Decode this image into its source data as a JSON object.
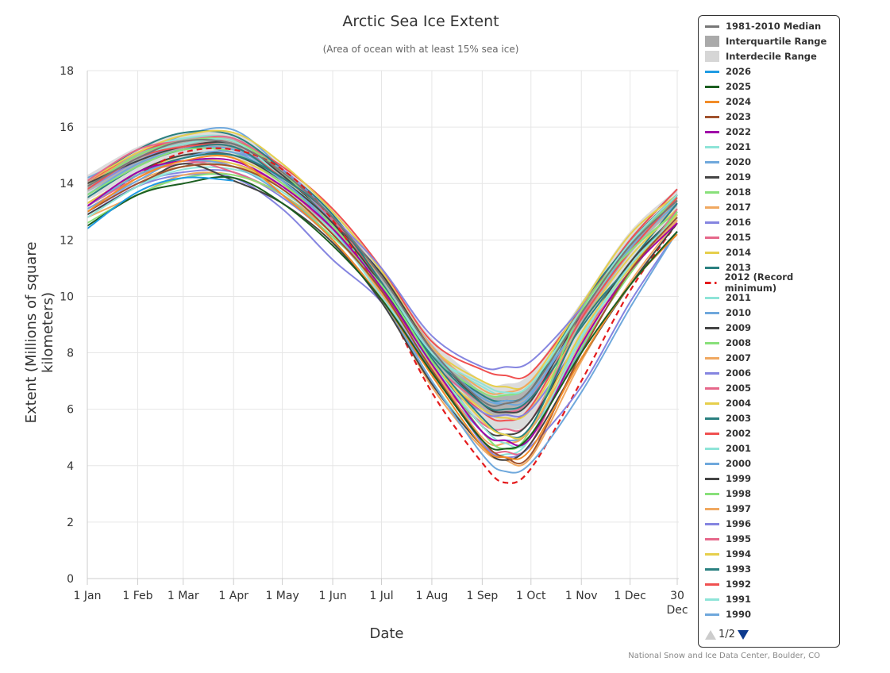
{
  "chart_data": {
    "type": "line",
    "title": "Arctic Sea Ice Extent",
    "subtitle": "(Area of ocean with at least 15% sea ice)",
    "xlabel": "Date",
    "ylabel": "Extent (Millions of square kilometers)",
    "ylim": [
      0,
      18
    ],
    "yticks": [
      0,
      2,
      4,
      6,
      8,
      10,
      12,
      14,
      16,
      18
    ],
    "xlim_days": [
      0,
      363
    ],
    "xticks": [
      {
        "day": 0,
        "label": "1 Jan"
      },
      {
        "day": 31,
        "label": "1 Feb"
      },
      {
        "day": 59,
        "label": "1 Mar"
      },
      {
        "day": 90,
        "label": "1 Apr"
      },
      {
        "day": 120,
        "label": "1 May"
      },
      {
        "day": 151,
        "label": "1 Jun"
      },
      {
        "day": 181,
        "label": "1 Jul"
      },
      {
        "day": 212,
        "label": "1 Aug"
      },
      {
        "day": 243,
        "label": "1 Sep"
      },
      {
        "day": 273,
        "label": "1 Oct"
      },
      {
        "day": 304,
        "label": "1 Nov"
      },
      {
        "day": 334,
        "label": "1 Dec"
      },
      {
        "day": 363,
        "label": "30",
        "label2": "Dec"
      }
    ],
    "grid": true,
    "legend_position": "right",
    "x_days": [
      0,
      31,
      59,
      90,
      120,
      151,
      181,
      212,
      243,
      257,
      273,
      304,
      334,
      363
    ],
    "median": {
      "name": "1981-2010 Median",
      "color": "#777777",
      "values": [
        13.9,
        14.9,
        15.5,
        15.4,
        14.4,
        12.8,
        10.7,
        8.1,
        6.3,
        6.2,
        6.7,
        9.4,
        11.8,
        13.4
      ]
    },
    "interquartile": {
      "name": "Interquartile Range",
      "color": "#aaaaaa",
      "lower": [
        13.7,
        14.6,
        15.2,
        15.2,
        14.1,
        12.5,
        10.4,
        7.8,
        6.0,
        5.8,
        6.3,
        9.0,
        11.5,
        13.2
      ],
      "upper": [
        14.1,
        15.1,
        15.6,
        15.6,
        14.5,
        12.9,
        10.8,
        8.3,
        6.6,
        6.5,
        6.9,
        9.6,
        12.0,
        13.6
      ]
    },
    "interdecile": {
      "name": "Interdecile Range",
      "color": "#d6d6d6",
      "lower": [
        13.4,
        14.3,
        14.9,
        14.9,
        13.8,
        12.2,
        10.0,
        7.4,
        5.5,
        5.3,
        5.6,
        8.4,
        11.0,
        12.9
      ],
      "upper": [
        14.3,
        15.3,
        15.8,
        15.8,
        14.7,
        13.1,
        11.0,
        8.5,
        7.0,
        6.9,
        7.3,
        9.8,
        12.3,
        13.8
      ]
    },
    "series": [
      {
        "name": "2026",
        "color": "#1f9be3",
        "values": [
          12.4,
          13.7,
          14.2,
          14.1
        ]
      },
      {
        "name": "2025",
        "color": "#1b5e20",
        "values": [
          12.5,
          13.6,
          14.0,
          14.2,
          13.3,
          11.8,
          9.9,
          7.3,
          4.9,
          4.6,
          5.1,
          8.0,
          10.4,
          12.3
        ]
      },
      {
        "name": "2024",
        "color": "#f28c28",
        "values": [
          13.0,
          14.2,
          14.8,
          14.9,
          13.6,
          12.0,
          9.9,
          7.2,
          4.7,
          4.3,
          4.6,
          7.8,
          10.4,
          12.2
        ]
      },
      {
        "name": "2023",
        "color": "#a0522d",
        "values": [
          13.0,
          14.0,
          14.6,
          14.6,
          13.8,
          12.2,
          10.2,
          7.4,
          4.9,
          4.3,
          4.4,
          8.0,
          10.9,
          12.8
        ]
      },
      {
        "name": "2022",
        "color": "#a000a8",
        "values": [
          13.2,
          14.4,
          14.8,
          14.8,
          13.9,
          12.4,
          10.3,
          7.6,
          5.2,
          4.9,
          5.0,
          8.3,
          10.9,
          12.6
        ]
      },
      {
        "name": "2021",
        "color": "#8ee4d8",
        "values": [
          12.8,
          13.9,
          14.6,
          14.6,
          13.7,
          12.3,
          10.0,
          7.6,
          5.4,
          4.8,
          5.0,
          8.5,
          11.1,
          12.8
        ]
      },
      {
        "name": "2020",
        "color": "#6fa8dc",
        "values": [
          13.2,
          14.3,
          14.8,
          14.6,
          13.6,
          12.0,
          9.9,
          7.0,
          4.4,
          3.8,
          4.1,
          6.6,
          9.6,
          12.3
        ]
      },
      {
        "name": "2019",
        "color": "#444444",
        "values": [
          12.9,
          13.9,
          14.7,
          14.1,
          13.3,
          11.9,
          9.8,
          6.9,
          4.7,
          4.2,
          4.8,
          7.8,
          10.4,
          12.6
        ]
      },
      {
        "name": "2018",
        "color": "#88e07a",
        "values": [
          12.6,
          13.6,
          14.2,
          14.3,
          13.6,
          12.1,
          10.4,
          7.7,
          5.2,
          4.6,
          5.1,
          8.2,
          10.8,
          13.0
        ]
      },
      {
        "name": "2017",
        "color": "#f0a860",
        "values": [
          12.8,
          13.6,
          14.3,
          14.3,
          13.6,
          12.2,
          10.1,
          7.5,
          5.0,
          4.8,
          5.3,
          8.4,
          10.9,
          12.7
        ]
      },
      {
        "name": "2016",
        "color": "#8585e0",
        "values": [
          12.9,
          13.9,
          14.3,
          14.2,
          13.1,
          11.3,
          9.8,
          7.4,
          4.8,
          4.3,
          4.7,
          6.8,
          9.8,
          12.3
        ]
      },
      {
        "name": "2015",
        "color": "#e6678a",
        "values": [
          13.2,
          14.2,
          14.8,
          14.4,
          13.6,
          12.2,
          10.1,
          7.6,
          4.8,
          4.5,
          4.8,
          8.5,
          10.8,
          13.1
        ]
      },
      {
        "name": "2014",
        "color": "#e6cf4c",
        "values": [
          13.3,
          14.3,
          14.8,
          14.7,
          13.8,
          12.2,
          10.2,
          7.7,
          5.6,
          5.1,
          5.3,
          8.7,
          11.0,
          12.9
        ]
      },
      {
        "name": "2013",
        "color": "#2a8080",
        "values": [
          13.2,
          14.3,
          14.9,
          15.0,
          14.2,
          12.8,
          10.5,
          7.8,
          5.7,
          5.1,
          5.4,
          9.0,
          11.1,
          13.0
        ]
      },
      {
        "name": "2012 (Record minimum)",
        "color": "#e41a1c",
        "dashed": true,
        "values": [
          13.2,
          14.3,
          15.1,
          15.2,
          14.5,
          12.7,
          10.0,
          6.6,
          4.1,
          3.4,
          3.9,
          7.0,
          10.2,
          12.6
        ]
      },
      {
        "name": "2011",
        "color": "#8ee4d8",
        "values": [
          12.9,
          13.9,
          14.5,
          14.5,
          13.8,
          12.0,
          9.8,
          7.0,
          4.7,
          4.4,
          5.0,
          8.6,
          10.9,
          12.8
        ]
      },
      {
        "name": "2010",
        "color": "#6fa8dc",
        "values": [
          13.1,
          14.1,
          14.9,
          15.1,
          14.1,
          12.4,
          10.0,
          7.3,
          5.2,
          4.9,
          5.3,
          8.1,
          10.9,
          12.9
        ]
      },
      {
        "name": "2009",
        "color": "#444444",
        "values": [
          13.2,
          14.4,
          15.0,
          15.0,
          14.1,
          12.6,
          10.4,
          7.7,
          5.4,
          5.1,
          5.6,
          8.6,
          11.2,
          12.9
        ]
      },
      {
        "name": "2008",
        "color": "#88e07a",
        "values": [
          13.6,
          14.6,
          15.2,
          15.1,
          14.0,
          12.5,
          10.4,
          7.6,
          5.2,
          4.6,
          5.3,
          9.5,
          11.6,
          13.0
        ]
      },
      {
        "name": "2007",
        "color": "#f0a860",
        "values": [
          13.1,
          14.1,
          14.6,
          14.6,
          13.9,
          12.5,
          10.0,
          6.8,
          4.6,
          4.2,
          4.3,
          7.7,
          10.5,
          12.7
        ]
      },
      {
        "name": "2006",
        "color": "#8585e0",
        "values": [
          13.0,
          14.0,
          14.4,
          14.4,
          13.5,
          12.0,
          9.8,
          7.3,
          5.9,
          5.8,
          6.0,
          8.5,
          10.9,
          12.8
        ]
      },
      {
        "name": "2005",
        "color": "#e6678a",
        "values": [
          13.3,
          14.3,
          14.7,
          14.7,
          13.9,
          12.3,
          10.1,
          7.3,
          5.5,
          5.3,
          5.6,
          9.0,
          11.1,
          12.9
        ]
      },
      {
        "name": "2004",
        "color": "#e6cf4c",
        "values": [
          13.3,
          14.3,
          15.0,
          14.9,
          14.0,
          12.3,
          10.3,
          7.6,
          6.0,
          5.7,
          6.0,
          9.0,
          11.4,
          13.1
        ]
      },
      {
        "name": "2003",
        "color": "#2a8080",
        "values": [
          13.5,
          14.6,
          15.2,
          15.3,
          14.1,
          12.3,
          10.3,
          7.9,
          6.2,
          6.0,
          6.4,
          8.9,
          11.2,
          13.3
        ]
      },
      {
        "name": "2002",
        "color": "#f05050",
        "values": [
          13.8,
          14.9,
          15.3,
          15.3,
          14.2,
          12.8,
          10.4,
          7.6,
          5.9,
          5.6,
          6.1,
          9.2,
          11.6,
          13.5
        ]
      },
      {
        "name": "2001",
        "color": "#8ee4d8",
        "values": [
          13.8,
          14.9,
          15.4,
          15.5,
          14.2,
          12.6,
          10.5,
          8.0,
          6.9,
          6.6,
          6.9,
          9.5,
          11.9,
          13.6
        ]
      },
      {
        "name": "2000",
        "color": "#6fa8dc",
        "values": [
          13.6,
          14.7,
          15.2,
          15.2,
          14.2,
          12.5,
          10.4,
          8.0,
          6.4,
          6.3,
          6.6,
          9.2,
          11.7,
          13.3
        ]
      },
      {
        "name": "1999",
        "color": "#444444",
        "values": [
          14.0,
          14.8,
          15.3,
          15.4,
          14.3,
          12.6,
          10.8,
          8.1,
          6.2,
          5.9,
          6.3,
          9.4,
          11.9,
          13.6
        ]
      },
      {
        "name": "1998",
        "color": "#88e07a",
        "values": [
          13.9,
          15.0,
          15.5,
          15.5,
          14.4,
          12.5,
          10.4,
          7.9,
          6.6,
          6.5,
          6.9,
          9.4,
          11.8,
          13.5
        ]
      },
      {
        "name": "1997",
        "color": "#f0a860",
        "values": [
          14.0,
          15.0,
          15.5,
          15.5,
          14.3,
          12.5,
          10.7,
          8.2,
          6.7,
          6.6,
          7.0,
          9.2,
          11.7,
          13.4
        ]
      },
      {
        "name": "1996",
        "color": "#8585e0",
        "values": [
          13.8,
          14.8,
          15.3,
          15.1,
          14.5,
          12.8,
          11.0,
          8.6,
          7.5,
          7.5,
          7.7,
          9.6,
          11.9,
          13.6
        ]
      },
      {
        "name": "1995",
        "color": "#e6678a",
        "values": [
          14.1,
          15.2,
          15.5,
          15.6,
          14.4,
          12.7,
          10.5,
          7.7,
          6.2,
          5.9,
          6.4,
          9.3,
          11.9,
          13.6
        ]
      },
      {
        "name": "1994",
        "color": "#e6cf4c",
        "values": [
          14.1,
          15.1,
          15.7,
          15.8,
          14.7,
          13.0,
          10.9,
          8.2,
          7.0,
          6.8,
          7.0,
          9.7,
          12.2,
          13.6
        ]
      },
      {
        "name": "1993",
        "color": "#2a8080",
        "values": [
          14.1,
          15.2,
          15.8,
          15.7,
          14.5,
          12.9,
          10.5,
          7.9,
          6.5,
          6.3,
          6.7,
          9.7,
          11.9,
          13.6
        ]
      },
      {
        "name": "1992",
        "color": "#f05050",
        "values": [
          14.0,
          15.1,
          15.5,
          15.5,
          14.6,
          13.1,
          11.0,
          8.4,
          7.4,
          7.2,
          7.3,
          9.6,
          12.0,
          13.8
        ]
      },
      {
        "name": "1991",
        "color": "#8ee4d8",
        "values": [
          14.0,
          15.1,
          15.6,
          15.6,
          14.5,
          12.8,
          10.7,
          8.0,
          6.8,
          6.5,
          6.9,
          9.2,
          11.8,
          13.5
        ]
      },
      {
        "name": "1990",
        "color": "#6fa8dc",
        "values": [
          14.2,
          15.0,
          15.7,
          15.9,
          14.5,
          12.6,
          10.4,
          7.6,
          6.4,
          6.2,
          6.5,
          9.5,
          12.0,
          13.8
        ]
      }
    ]
  },
  "legend": {
    "page": "1/2"
  },
  "credit": "National Snow and Ice Data Center, Boulder, CO"
}
